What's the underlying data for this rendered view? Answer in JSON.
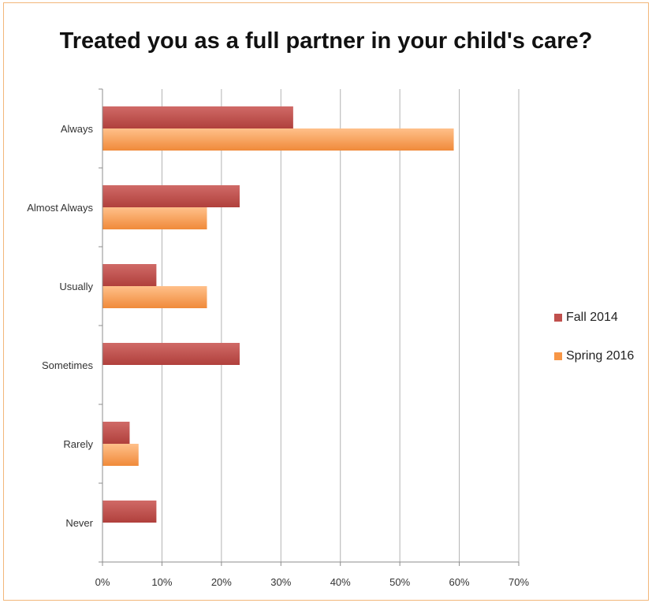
{
  "chart_data": {
    "type": "bar",
    "orientation": "horizontal",
    "title": "Treated you as a full partner in your child's care?",
    "xlabel": "",
    "ylabel": "",
    "categories": [
      "Always",
      "Almost Always",
      "Usually",
      "Sometimes",
      "Rarely",
      "Never"
    ],
    "series": [
      {
        "name": "Fall 2014",
        "color": "#c0504d",
        "values": [
          32,
          23,
          9,
          23,
          4.5,
          9
        ]
      },
      {
        "name": "Spring 2016",
        "color": "#f79646",
        "values": [
          59,
          17.5,
          17.5,
          0,
          6,
          0
        ]
      }
    ],
    "xlim": [
      0,
      70
    ],
    "xticks": [
      "0%",
      "10%",
      "20%",
      "30%",
      "40%",
      "50%",
      "60%",
      "70%"
    ],
    "grid": true,
    "legend_position": "right"
  }
}
